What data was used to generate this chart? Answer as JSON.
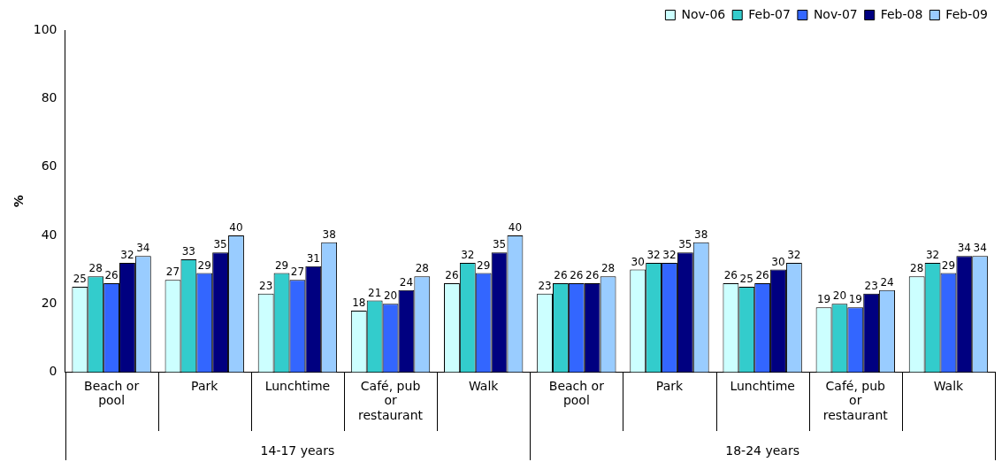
{
  "chart_data": {
    "type": "bar",
    "ylabel": "%",
    "categories": [
      "Beach or pool",
      "Park",
      "Lunchtime",
      "Café, pub or restaurant",
      "Walk",
      "Beach or pool",
      "Park",
      "Lunchtime",
      "Café, pub or restaurant",
      "Walk"
    ],
    "series": [
      {
        "name": "Nov-06",
        "color": "#ccffff",
        "values": [
          25,
          27,
          23,
          18,
          26,
          23,
          30,
          26,
          19,
          28
        ]
      },
      {
        "name": "Feb-07",
        "color": "#33cccc",
        "values": [
          28,
          33,
          29,
          21,
          32,
          26,
          32,
          25,
          20,
          32
        ]
      },
      {
        "name": "Nov-07",
        "color": "#3366ff",
        "values": [
          26,
          29,
          27,
          20,
          29,
          26,
          32,
          26,
          19,
          29
        ]
      },
      {
        "name": "Feb-08",
        "color": "#000080",
        "values": [
          32,
          35,
          31,
          24,
          35,
          26,
          35,
          30,
          23,
          34
        ]
      },
      {
        "name": "Feb-09",
        "color": "#99ccff",
        "values": [
          34,
          40,
          38,
          28,
          40,
          28,
          38,
          32,
          24,
          34
        ]
      }
    ],
    "annotations": [
      "14-17 years",
      "18-24 years"
    ],
    "ylim": [
      0,
      100
    ],
    "yticks": [
      0,
      20,
      40,
      60,
      80,
      100
    ],
    "grid": false,
    "legend": "top right",
    "data_labels": true
  }
}
